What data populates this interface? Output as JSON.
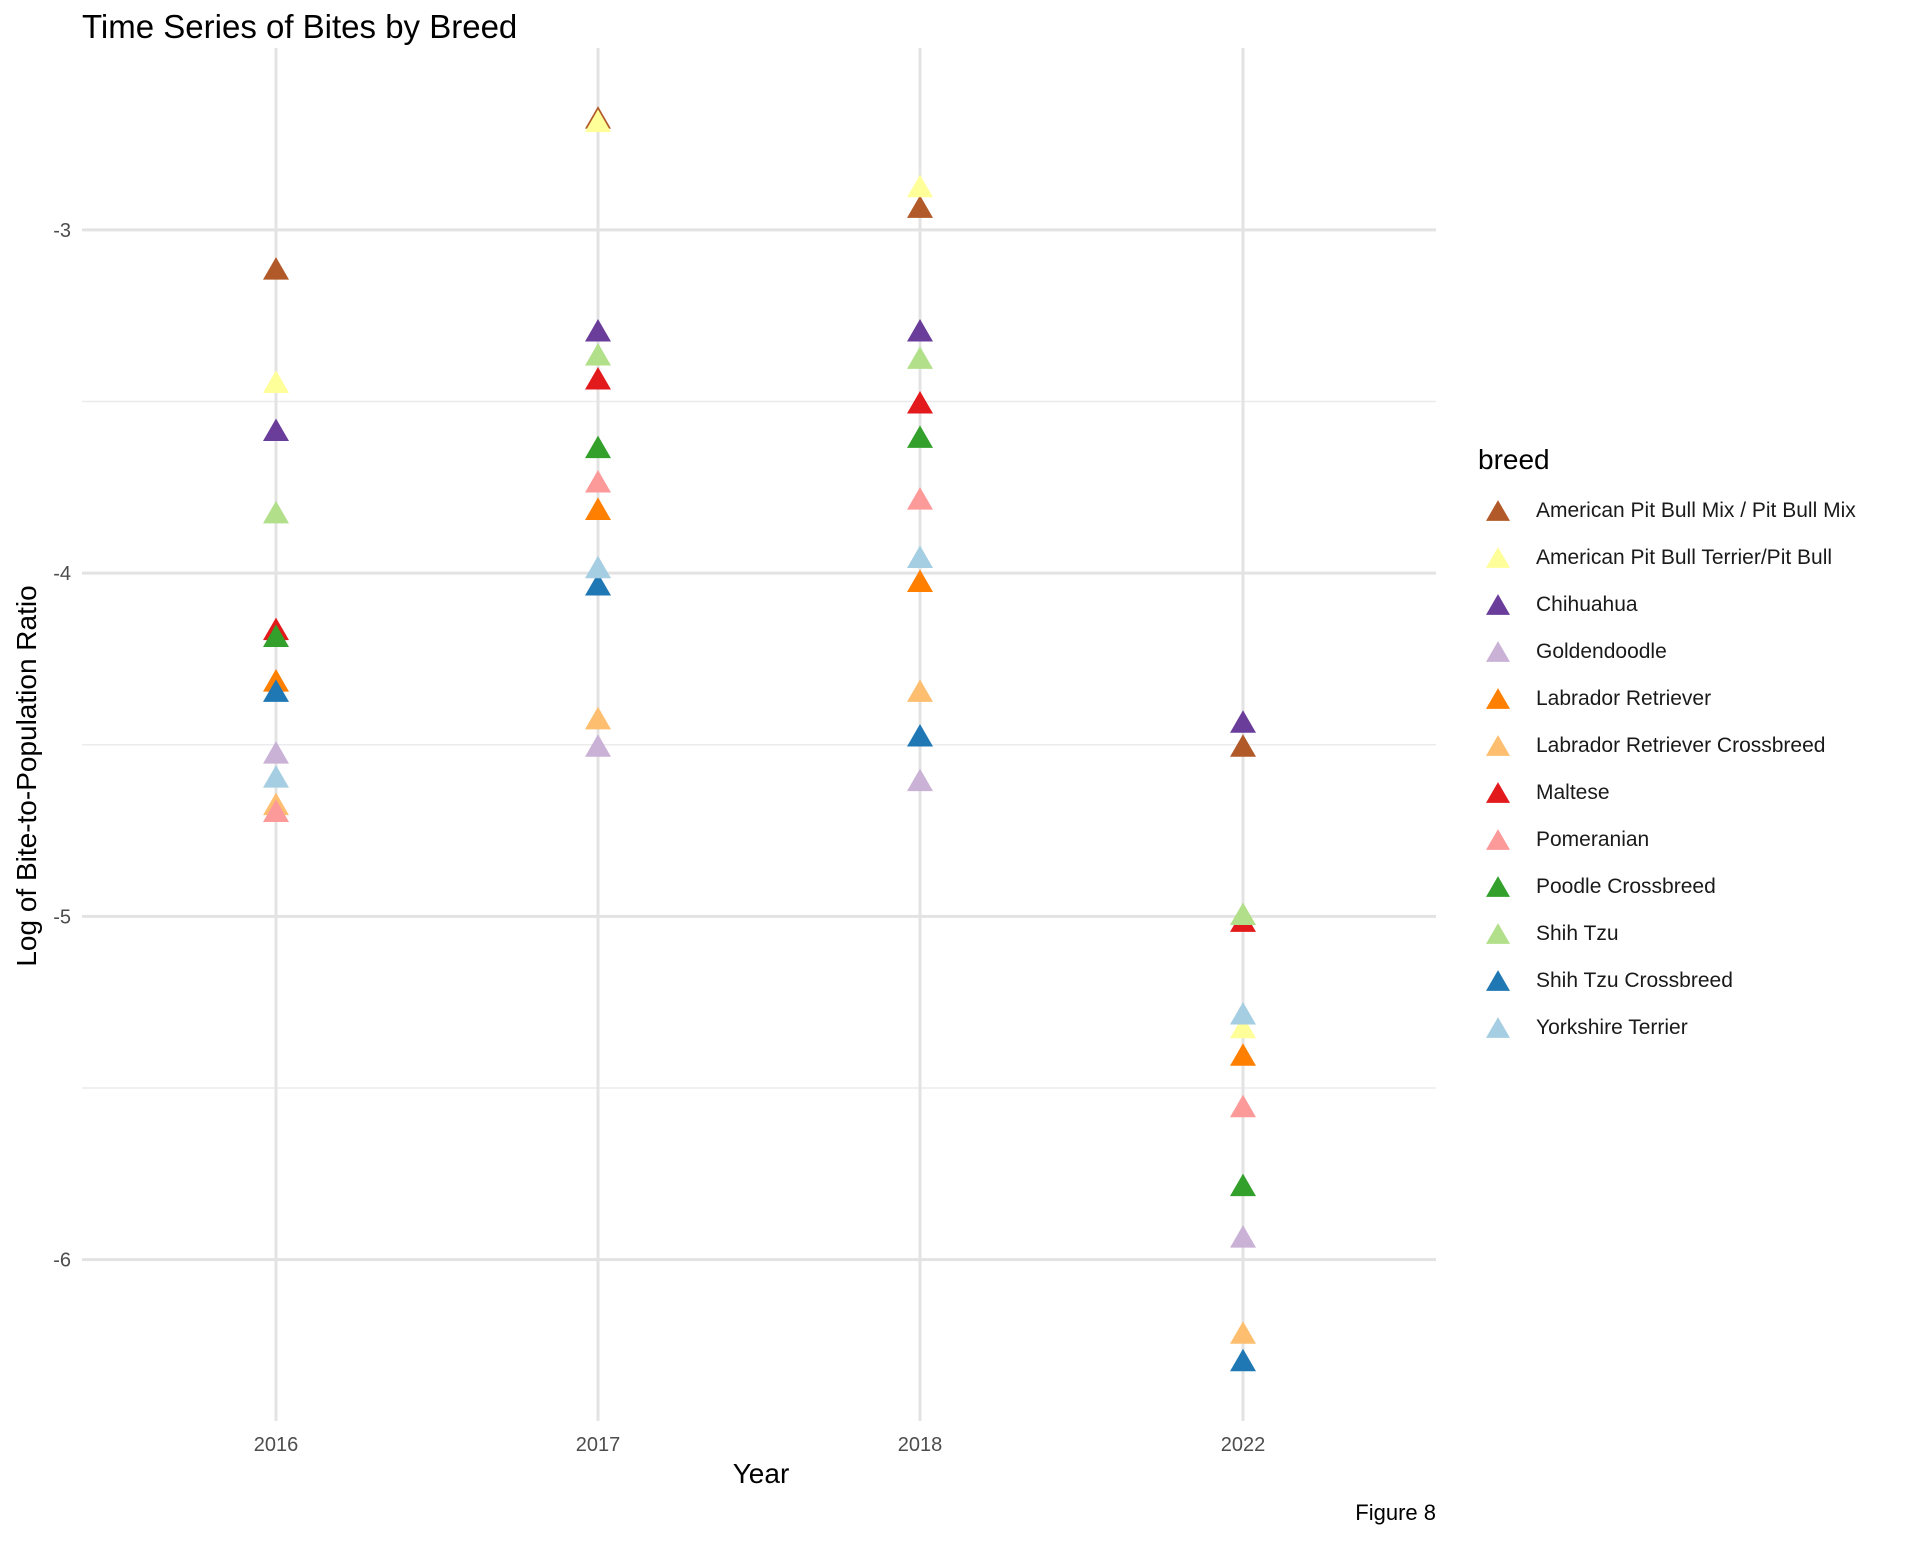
{
  "chart_data": {
    "type": "scatter",
    "title": "Time Series of Bites by Breed",
    "xlabel": "Year",
    "ylabel": "Log of Bite-to-Population Ratio",
    "caption": "Figure 8",
    "categories": [
      "2016",
      "2017",
      "2018",
      "2022"
    ],
    "ylim": [
      -6.47,
      -2.47
    ],
    "y_ticks": [
      -3,
      -4,
      -5,
      -6
    ],
    "y_tick_labels": [
      "-3",
      "-4",
      "-5",
      "-6"
    ],
    "marker": "triangle",
    "grid": true,
    "legend_title": "breed",
    "legend_position": "right",
    "series": [
      {
        "name": "American Pit Bull Mix / Pit Bull Mix",
        "color": "#B15928",
        "values": [
          -3.12,
          -2.68,
          -2.94,
          -4.51
        ]
      },
      {
        "name": "American Pit Bull Terrier/Pit Bull",
        "color": "#FFFF99",
        "values": [
          -3.45,
          -2.69,
          -2.88,
          -5.33
        ]
      },
      {
        "name": "Chihuahua",
        "color": "#6A3D9A",
        "values": [
          -3.59,
          -3.3,
          -3.3,
          -4.44
        ]
      },
      {
        "name": "Goldendoodle",
        "color": "#CAB2D6",
        "values": [
          -4.53,
          -4.51,
          -4.61,
          -5.94
        ]
      },
      {
        "name": "Labrador Retriever",
        "color": "#FF7F00",
        "values": [
          -4.32,
          -3.82,
          -4.03,
          -5.41
        ]
      },
      {
        "name": "Labrador Retriever Crossbreed",
        "color": "#FDBF6F",
        "values": [
          -4.68,
          -4.43,
          -4.35,
          -6.22
        ]
      },
      {
        "name": "Maltese",
        "color": "#E31A1C",
        "values": [
          -4.17,
          -3.44,
          -3.51,
          -5.02
        ]
      },
      {
        "name": "Pomeranian",
        "color": "#FB9A99",
        "values": [
          -4.7,
          -3.74,
          -3.79,
          -5.56
        ]
      },
      {
        "name": "Poodle Crossbreed",
        "color": "#33A02C",
        "values": [
          -4.19,
          -3.64,
          -3.61,
          -5.79
        ]
      },
      {
        "name": "Shih Tzu",
        "color": "#B2DF8A",
        "values": [
          -3.83,
          -3.37,
          -3.38,
          -5.0
        ]
      },
      {
        "name": "Shih Tzu Crossbreed",
        "color": "#1F78B4",
        "values": [
          -4.35,
          -4.04,
          -4.48,
          -6.3
        ]
      },
      {
        "name": "Yorkshire Terrier",
        "color": "#A6CEE3",
        "values": [
          -4.6,
          -3.99,
          -3.96,
          -5.29
        ]
      }
    ]
  }
}
